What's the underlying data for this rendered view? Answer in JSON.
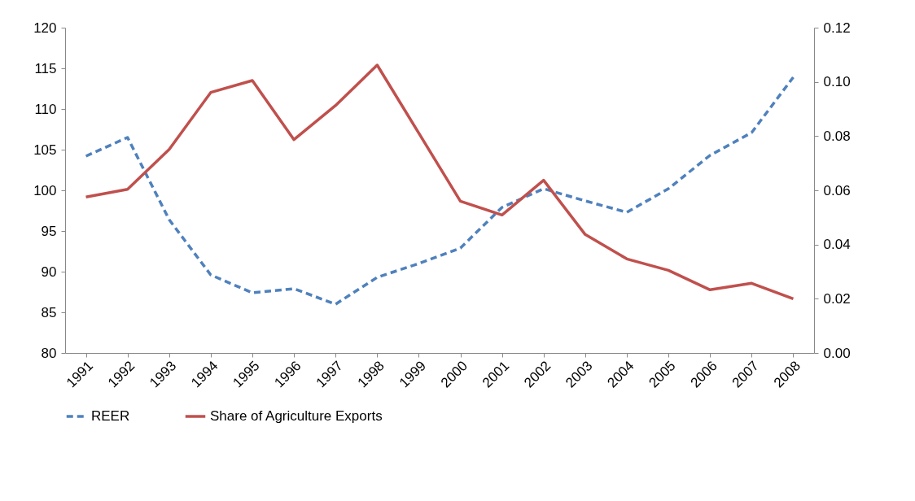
{
  "chart_data": {
    "type": "line",
    "categories": [
      "1991",
      "1992",
      "1993",
      "1994",
      "1995",
      "1996",
      "1997",
      "1998",
      "1999",
      "2000",
      "2001",
      "2002",
      "2003",
      "2004",
      "2005",
      "2006",
      "2007",
      "2008"
    ],
    "ylim": [
      80,
      120
    ],
    "yticks": [
      80,
      85,
      90,
      95,
      100,
      105,
      110,
      115,
      120
    ],
    "y2lim": [
      0,
      0.12
    ],
    "y2ticks": [
      {
        "value": 0,
        "label": "0.00"
      },
      {
        "value": 0.02,
        "label": "0.02"
      },
      {
        "value": 0.04,
        "label": "0.04"
      },
      {
        "value": 0.06,
        "label": "0.06"
      },
      {
        "value": 0.08,
        "label": "0.08"
      },
      {
        "value": 0.1,
        "label": "0.10"
      },
      {
        "value": 0.12,
        "label": "0.12"
      }
    ],
    "series": [
      {
        "name": "REER",
        "color": "#4f81bd",
        "line_style": "dashed",
        "values": [
          104.2,
          106.5,
          96.4,
          89.6,
          87.4,
          87.9,
          86.0,
          89.3,
          91.0,
          92.9,
          97.9,
          100.2,
          98.7,
          97.3,
          100.2,
          104.3,
          107.1,
          113.9
        ]
      },
      {
        "name": "Share of Agriculture Exports",
        "color": "#c0504d",
        "line_style": "solid",
        "axis": "y2",
        "values": [
          0.0575,
          0.0604,
          0.0751,
          0.0961,
          0.1005,
          0.0787,
          0.0913,
          0.1062,
          0.0811,
          0.056,
          0.0509,
          0.0637,
          0.0437,
          0.0347,
          0.0305,
          0.0233,
          0.0257,
          0.02
        ]
      }
    ],
    "grid": false,
    "legend": "bottom"
  }
}
